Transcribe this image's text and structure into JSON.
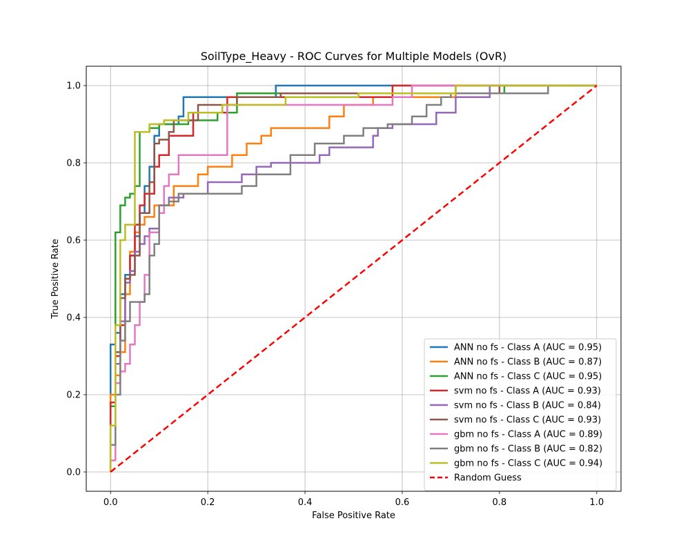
{
  "chart_data": {
    "type": "line",
    "title": "SoilType_Heavy - ROC Curves for Multiple Models (OvR)",
    "xlabel": "False Positive Rate",
    "ylabel": "True Positive Rate",
    "xlim": [
      -0.05,
      1.05
    ],
    "ylim": [
      -0.05,
      1.05
    ],
    "x_ticks": [
      0.0,
      0.2,
      0.4,
      0.6,
      0.8,
      1.0
    ],
    "y_ticks": [
      0.0,
      0.2,
      0.4,
      0.6,
      0.8,
      1.0
    ],
    "x_tick_labels": [
      "0.0",
      "0.2",
      "0.4",
      "0.6",
      "0.8",
      "1.0"
    ],
    "y_tick_labels": [
      "0.0",
      "0.2",
      "0.4",
      "0.6",
      "0.8",
      "1.0"
    ],
    "grid": true,
    "legend_position": "lower-right",
    "series": [
      {
        "name": "ANN no fs - Class A (AUC = 0.95)",
        "color": "#1f77b4",
        "step": true,
        "x": [
          0,
          0,
          0.01,
          0.01,
          0.02,
          0.02,
          0.03,
          0.03,
          0.04,
          0.04,
          0.05,
          0.05,
          0.06,
          0.06,
          0.07,
          0.07,
          0.08,
          0.08,
          0.09,
          0.09,
          0.1,
          0.1,
          0.14,
          0.14,
          0.15,
          0.15,
          0.34,
          0.34,
          1.0
        ],
        "y": [
          0,
          0.33,
          0.33,
          0.36,
          0.36,
          0.46,
          0.46,
          0.51,
          0.51,
          0.56,
          0.56,
          0.61,
          0.61,
          0.67,
          0.67,
          0.74,
          0.74,
          0.79,
          0.79,
          0.87,
          0.87,
          0.9,
          0.9,
          0.92,
          0.92,
          0.97,
          0.97,
          1.0,
          1.0
        ]
      },
      {
        "name": "ANN no fs - Class B (AUC = 0.87)",
        "color": "#ff7f0e",
        "step": true,
        "x": [
          0,
          0,
          0.01,
          0.01,
          0.02,
          0.02,
          0.03,
          0.03,
          0.04,
          0.04,
          0.05,
          0.05,
          0.06,
          0.06,
          0.07,
          0.07,
          0.09,
          0.09,
          0.13,
          0.13,
          0.18,
          0.18,
          0.2,
          0.2,
          0.25,
          0.25,
          0.28,
          0.28,
          0.31,
          0.31,
          0.33,
          0.33,
          0.45,
          0.45,
          0.48,
          0.48,
          0.54,
          0.54,
          0.71,
          0.71,
          1.0
        ],
        "y": [
          0,
          0.2,
          0.2,
          0.25,
          0.25,
          0.31,
          0.31,
          0.46,
          0.46,
          0.57,
          0.57,
          0.62,
          0.62,
          0.64,
          0.64,
          0.66,
          0.66,
          0.69,
          0.69,
          0.74,
          0.74,
          0.77,
          0.77,
          0.79,
          0.79,
          0.82,
          0.82,
          0.85,
          0.85,
          0.87,
          0.87,
          0.89,
          0.89,
          0.92,
          0.92,
          0.95,
          0.95,
          0.97,
          0.97,
          1.0,
          1.0
        ]
      },
      {
        "name": "ANN no fs - Class C (AUC = 0.95)",
        "color": "#2ca02c",
        "step": true,
        "x": [
          0,
          0,
          0.01,
          0.01,
          0.02,
          0.02,
          0.03,
          0.03,
          0.04,
          0.04,
          0.05,
          0.05,
          0.06,
          0.06,
          0.08,
          0.08,
          0.1,
          0.1,
          0.16,
          0.16,
          0.22,
          0.22,
          0.26,
          0.26,
          0.81,
          0.81,
          1.0
        ],
        "y": [
          0,
          0.17,
          0.17,
          0.62,
          0.62,
          0.69,
          0.69,
          0.71,
          0.71,
          0.72,
          0.72,
          0.74,
          0.74,
          0.88,
          0.88,
          0.89,
          0.89,
          0.9,
          0.9,
          0.91,
          0.91,
          0.93,
          0.93,
          0.98,
          0.98,
          1.0,
          1.0
        ]
      },
      {
        "name": "svm no fs - Class A (AUC = 0.93)",
        "color": "#d62728",
        "step": true,
        "x": [
          0,
          0,
          0.01,
          0.01,
          0.02,
          0.02,
          0.03,
          0.03,
          0.04,
          0.04,
          0.05,
          0.05,
          0.06,
          0.06,
          0.07,
          0.07,
          0.09,
          0.09,
          0.1,
          0.1,
          0.12,
          0.12,
          0.17,
          0.17,
          0.24,
          0.24,
          0.58,
          0.58,
          1.0
        ],
        "y": [
          0,
          0.18,
          0.18,
          0.3,
          0.3,
          0.38,
          0.38,
          0.5,
          0.5,
          0.56,
          0.56,
          0.64,
          0.64,
          0.69,
          0.69,
          0.72,
          0.72,
          0.79,
          0.79,
          0.82,
          0.82,
          0.87,
          0.87,
          0.93,
          0.93,
          0.97,
          0.97,
          1.0,
          1.0
        ]
      },
      {
        "name": "svm no fs - Class B (AUC = 0.84)",
        "color": "#9467bd",
        "step": true,
        "x": [
          0,
          0,
          0.01,
          0.01,
          0.02,
          0.02,
          0.03,
          0.03,
          0.04,
          0.04,
          0.05,
          0.05,
          0.06,
          0.06,
          0.07,
          0.07,
          0.08,
          0.08,
          0.1,
          0.1,
          0.12,
          0.12,
          0.15,
          0.15,
          0.2,
          0.2,
          0.27,
          0.27,
          0.3,
          0.3,
          0.33,
          0.33,
          0.43,
          0.43,
          0.45,
          0.45,
          0.54,
          0.54,
          0.55,
          0.55,
          0.58,
          0.58,
          0.67,
          0.67,
          0.71,
          0.71,
          0.78,
          0.78,
          1.0
        ],
        "y": [
          0,
          0.03,
          0.03,
          0.28,
          0.28,
          0.39,
          0.39,
          0.49,
          0.49,
          0.52,
          0.52,
          0.57,
          0.57,
          0.59,
          0.59,
          0.61,
          0.61,
          0.63,
          0.63,
          0.69,
          0.69,
          0.71,
          0.71,
          0.72,
          0.72,
          0.75,
          0.75,
          0.77,
          0.77,
          0.79,
          0.79,
          0.8,
          0.8,
          0.82,
          0.82,
          0.84,
          0.84,
          0.87,
          0.87,
          0.89,
          0.89,
          0.9,
          0.9,
          0.93,
          0.93,
          0.97,
          0.97,
          1.0,
          1.0
        ]
      },
      {
        "name": "svm no fs - Class C (AUC = 0.93)",
        "color": "#8c564b",
        "step": true,
        "x": [
          0,
          0,
          0.01,
          0.01,
          0.02,
          0.02,
          0.03,
          0.03,
          0.04,
          0.04,
          0.05,
          0.05,
          0.06,
          0.06,
          0.08,
          0.08,
          0.09,
          0.09,
          0.1,
          0.1,
          0.12,
          0.12,
          0.13,
          0.13,
          0.18,
          0.18,
          0.26,
          0.26,
          0.35,
          0.35,
          0.8,
          0.8,
          1.0
        ],
        "y": [
          0,
          0.12,
          0.12,
          0.31,
          0.31,
          0.45,
          0.45,
          0.5,
          0.5,
          0.51,
          0.51,
          0.56,
          0.56,
          0.67,
          0.67,
          0.75,
          0.75,
          0.85,
          0.85,
          0.86,
          0.86,
          0.88,
          0.88,
          0.91,
          0.91,
          0.95,
          0.95,
          0.97,
          0.97,
          0.98,
          0.98,
          1.0,
          1.0
        ]
      },
      {
        "name": "gbm no fs - Class A (AUC = 0.89)",
        "color": "#e377c2",
        "step": true,
        "x": [
          0,
          0,
          0.01,
          0.01,
          0.02,
          0.02,
          0.03,
          0.03,
          0.04,
          0.04,
          0.05,
          0.05,
          0.06,
          0.06,
          0.07,
          0.07,
          0.08,
          0.08,
          0.1,
          0.1,
          0.11,
          0.11,
          0.12,
          0.12,
          0.14,
          0.14,
          0.24,
          0.24,
          0.58,
          0.58,
          0.62,
          0.62,
          1.0
        ],
        "y": [
          0,
          0.03,
          0.03,
          0.23,
          0.23,
          0.26,
          0.26,
          0.28,
          0.28,
          0.33,
          0.33,
          0.38,
          0.38,
          0.44,
          0.44,
          0.51,
          0.51,
          0.62,
          0.62,
          0.67,
          0.67,
          0.74,
          0.74,
          0.77,
          0.77,
          0.82,
          0.82,
          0.95,
          0.95,
          0.97,
          0.97,
          1.0,
          1.0
        ]
      },
      {
        "name": "gbm no fs - Class B (AUC = 0.82)",
        "color": "#7f7f7f",
        "step": true,
        "x": [
          0,
          0,
          0.01,
          0.01,
          0.02,
          0.02,
          0.03,
          0.03,
          0.04,
          0.04,
          0.07,
          0.07,
          0.08,
          0.08,
          0.09,
          0.09,
          0.1,
          0.1,
          0.12,
          0.12,
          0.14,
          0.14,
          0.27,
          0.27,
          0.3,
          0.3,
          0.37,
          0.37,
          0.42,
          0.42,
          0.48,
          0.48,
          0.52,
          0.52,
          0.57,
          0.57,
          0.62,
          0.62,
          0.65,
          0.65,
          0.68,
          0.68,
          0.7,
          0.7,
          0.9,
          0.9,
          1.0
        ],
        "y": [
          0,
          0.07,
          0.07,
          0.2,
          0.2,
          0.34,
          0.34,
          0.39,
          0.39,
          0.44,
          0.44,
          0.46,
          0.46,
          0.56,
          0.56,
          0.59,
          0.59,
          0.69,
          0.69,
          0.7,
          0.7,
          0.72,
          0.72,
          0.74,
          0.74,
          0.77,
          0.77,
          0.82,
          0.82,
          0.85,
          0.85,
          0.87,
          0.87,
          0.89,
          0.89,
          0.9,
          0.9,
          0.92,
          0.92,
          0.95,
          0.95,
          0.97,
          0.97,
          0.98,
          0.98,
          1.0,
          1.0
        ]
      },
      {
        "name": "gbm no fs - Class C (AUC = 0.94)",
        "color": "#bcbd22",
        "step": true,
        "x": [
          0,
          0,
          0.01,
          0.01,
          0.02,
          0.02,
          0.03,
          0.03,
          0.05,
          0.05,
          0.08,
          0.08,
          0.11,
          0.11,
          0.16,
          0.16,
          0.23,
          0.23,
          0.36,
          0.36,
          0.51,
          0.51,
          0.71,
          0.71,
          1.0
        ],
        "y": [
          0,
          0.12,
          0.12,
          0.38,
          0.38,
          0.6,
          0.6,
          0.64,
          0.64,
          0.88,
          0.88,
          0.9,
          0.9,
          0.91,
          0.91,
          0.93,
          0.93,
          0.95,
          0.95,
          0.97,
          0.97,
          0.98,
          0.98,
          1.0,
          1.0
        ]
      },
      {
        "name": "Random Guess",
        "color": "#ff0000",
        "dashed": true,
        "x": [
          0,
          1
        ],
        "y": [
          0,
          1
        ]
      }
    ]
  }
}
